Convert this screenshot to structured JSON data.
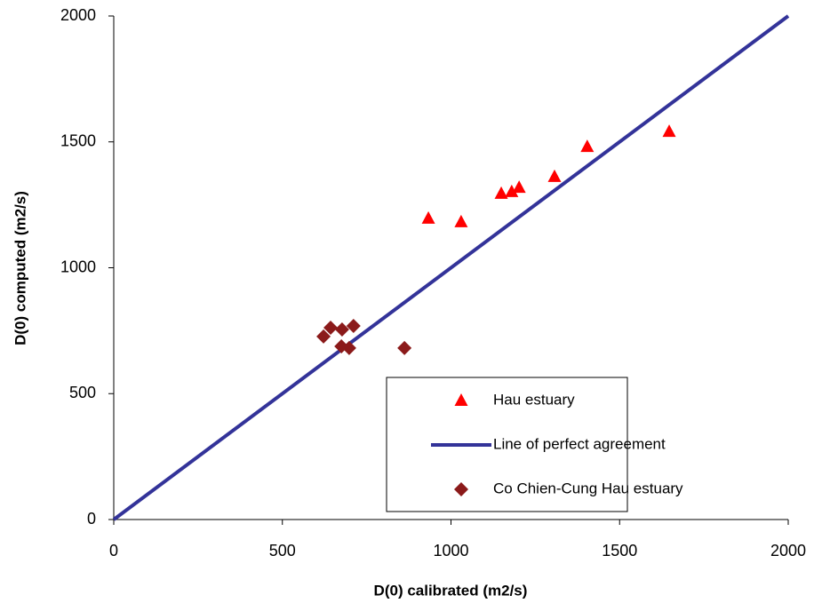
{
  "chart_data": {
    "type": "scatter",
    "x_label": "D(0) calibrated (m2/s)",
    "y_label": "D(0) computed (m2/s)",
    "xlim": [
      0,
      2000
    ],
    "ylim": [
      0,
      2000
    ],
    "xticks": [
      0,
      500,
      1000,
      1500,
      2000
    ],
    "yticks": [
      0,
      500,
      1000,
      1500,
      2000
    ],
    "grid": false,
    "legend_position": "lower right",
    "series": [
      {
        "name": "Hau estuary",
        "color": "#ff0000",
        "mode": "markers",
        "marker": "triangle",
        "x": [
          933,
          1030,
          1149,
          1180,
          1202,
          1307,
          1404,
          1647
        ],
        "values": [
          1196,
          1182,
          1295,
          1302,
          1319,
          1362,
          1481,
          1541
        ]
      },
      {
        "name": "Line of perfect agreement",
        "color": "#333399",
        "mode": "line",
        "x": [
          0,
          2000
        ],
        "values": [
          0,
          2000
        ]
      },
      {
        "name": "Co Chien-Cung Hau estuary",
        "color": "#8b1a1a",
        "mode": "markers",
        "marker": "diamond",
        "x": [
          622,
          643,
          677,
          675,
          698,
          711,
          862
        ],
        "values": [
          727,
          762,
          755,
          688,
          681,
          769,
          681
        ]
      }
    ]
  }
}
